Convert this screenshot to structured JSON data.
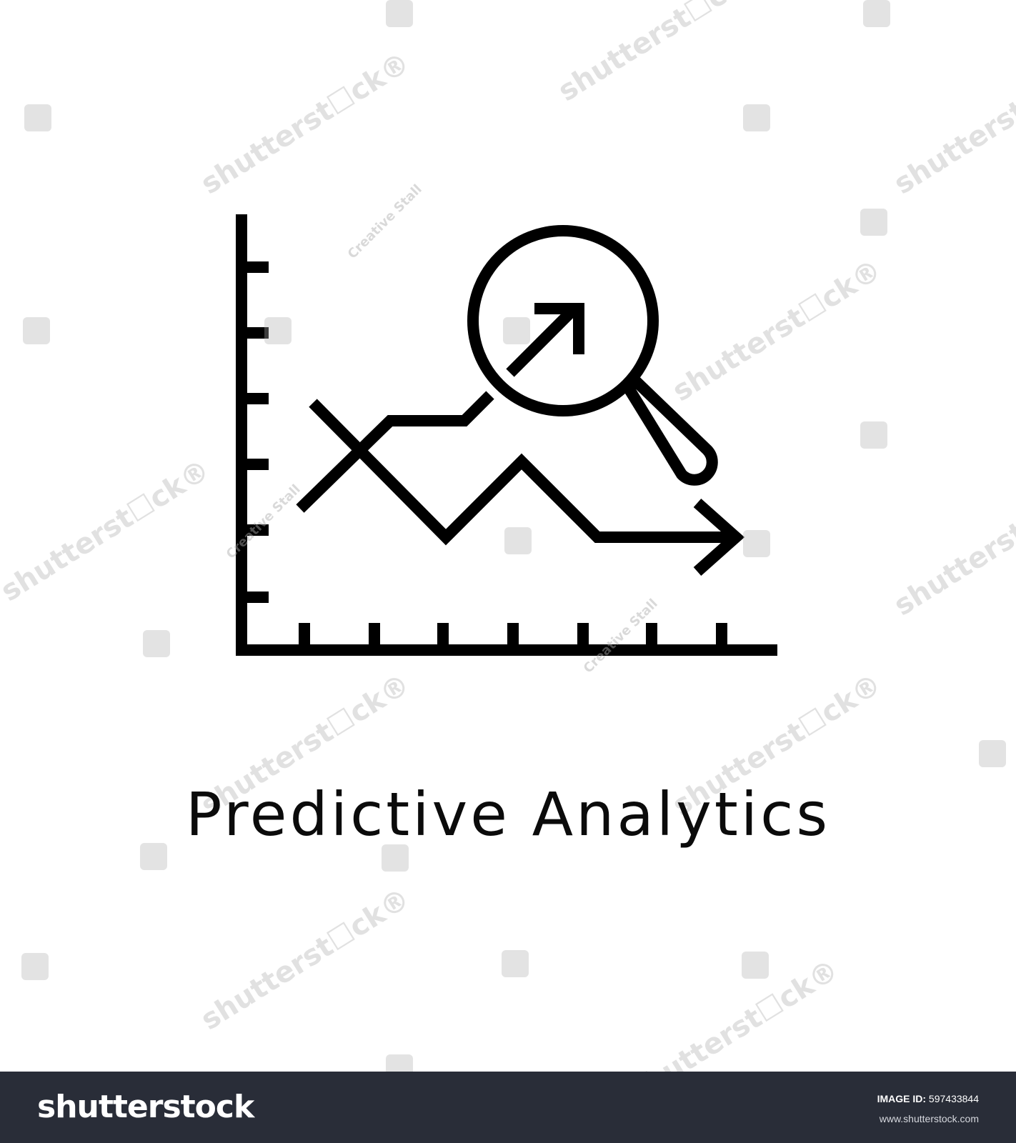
{
  "caption": "Predictive Analytics",
  "watermark": {
    "brand": "shutterstock",
    "contributor": "Creative Stall"
  },
  "footer": {
    "logo": "shutterstock",
    "image_id_label": "IMAGE ID:",
    "image_id_value": "597433844",
    "url": "www.shutterstock.com"
  },
  "icon": {
    "name": "predictive-analytics-icon",
    "color": "#000000"
  },
  "colors": {
    "background": "#ffffff",
    "footer_background": "#292d38",
    "footer_text": "#ffffff"
  }
}
